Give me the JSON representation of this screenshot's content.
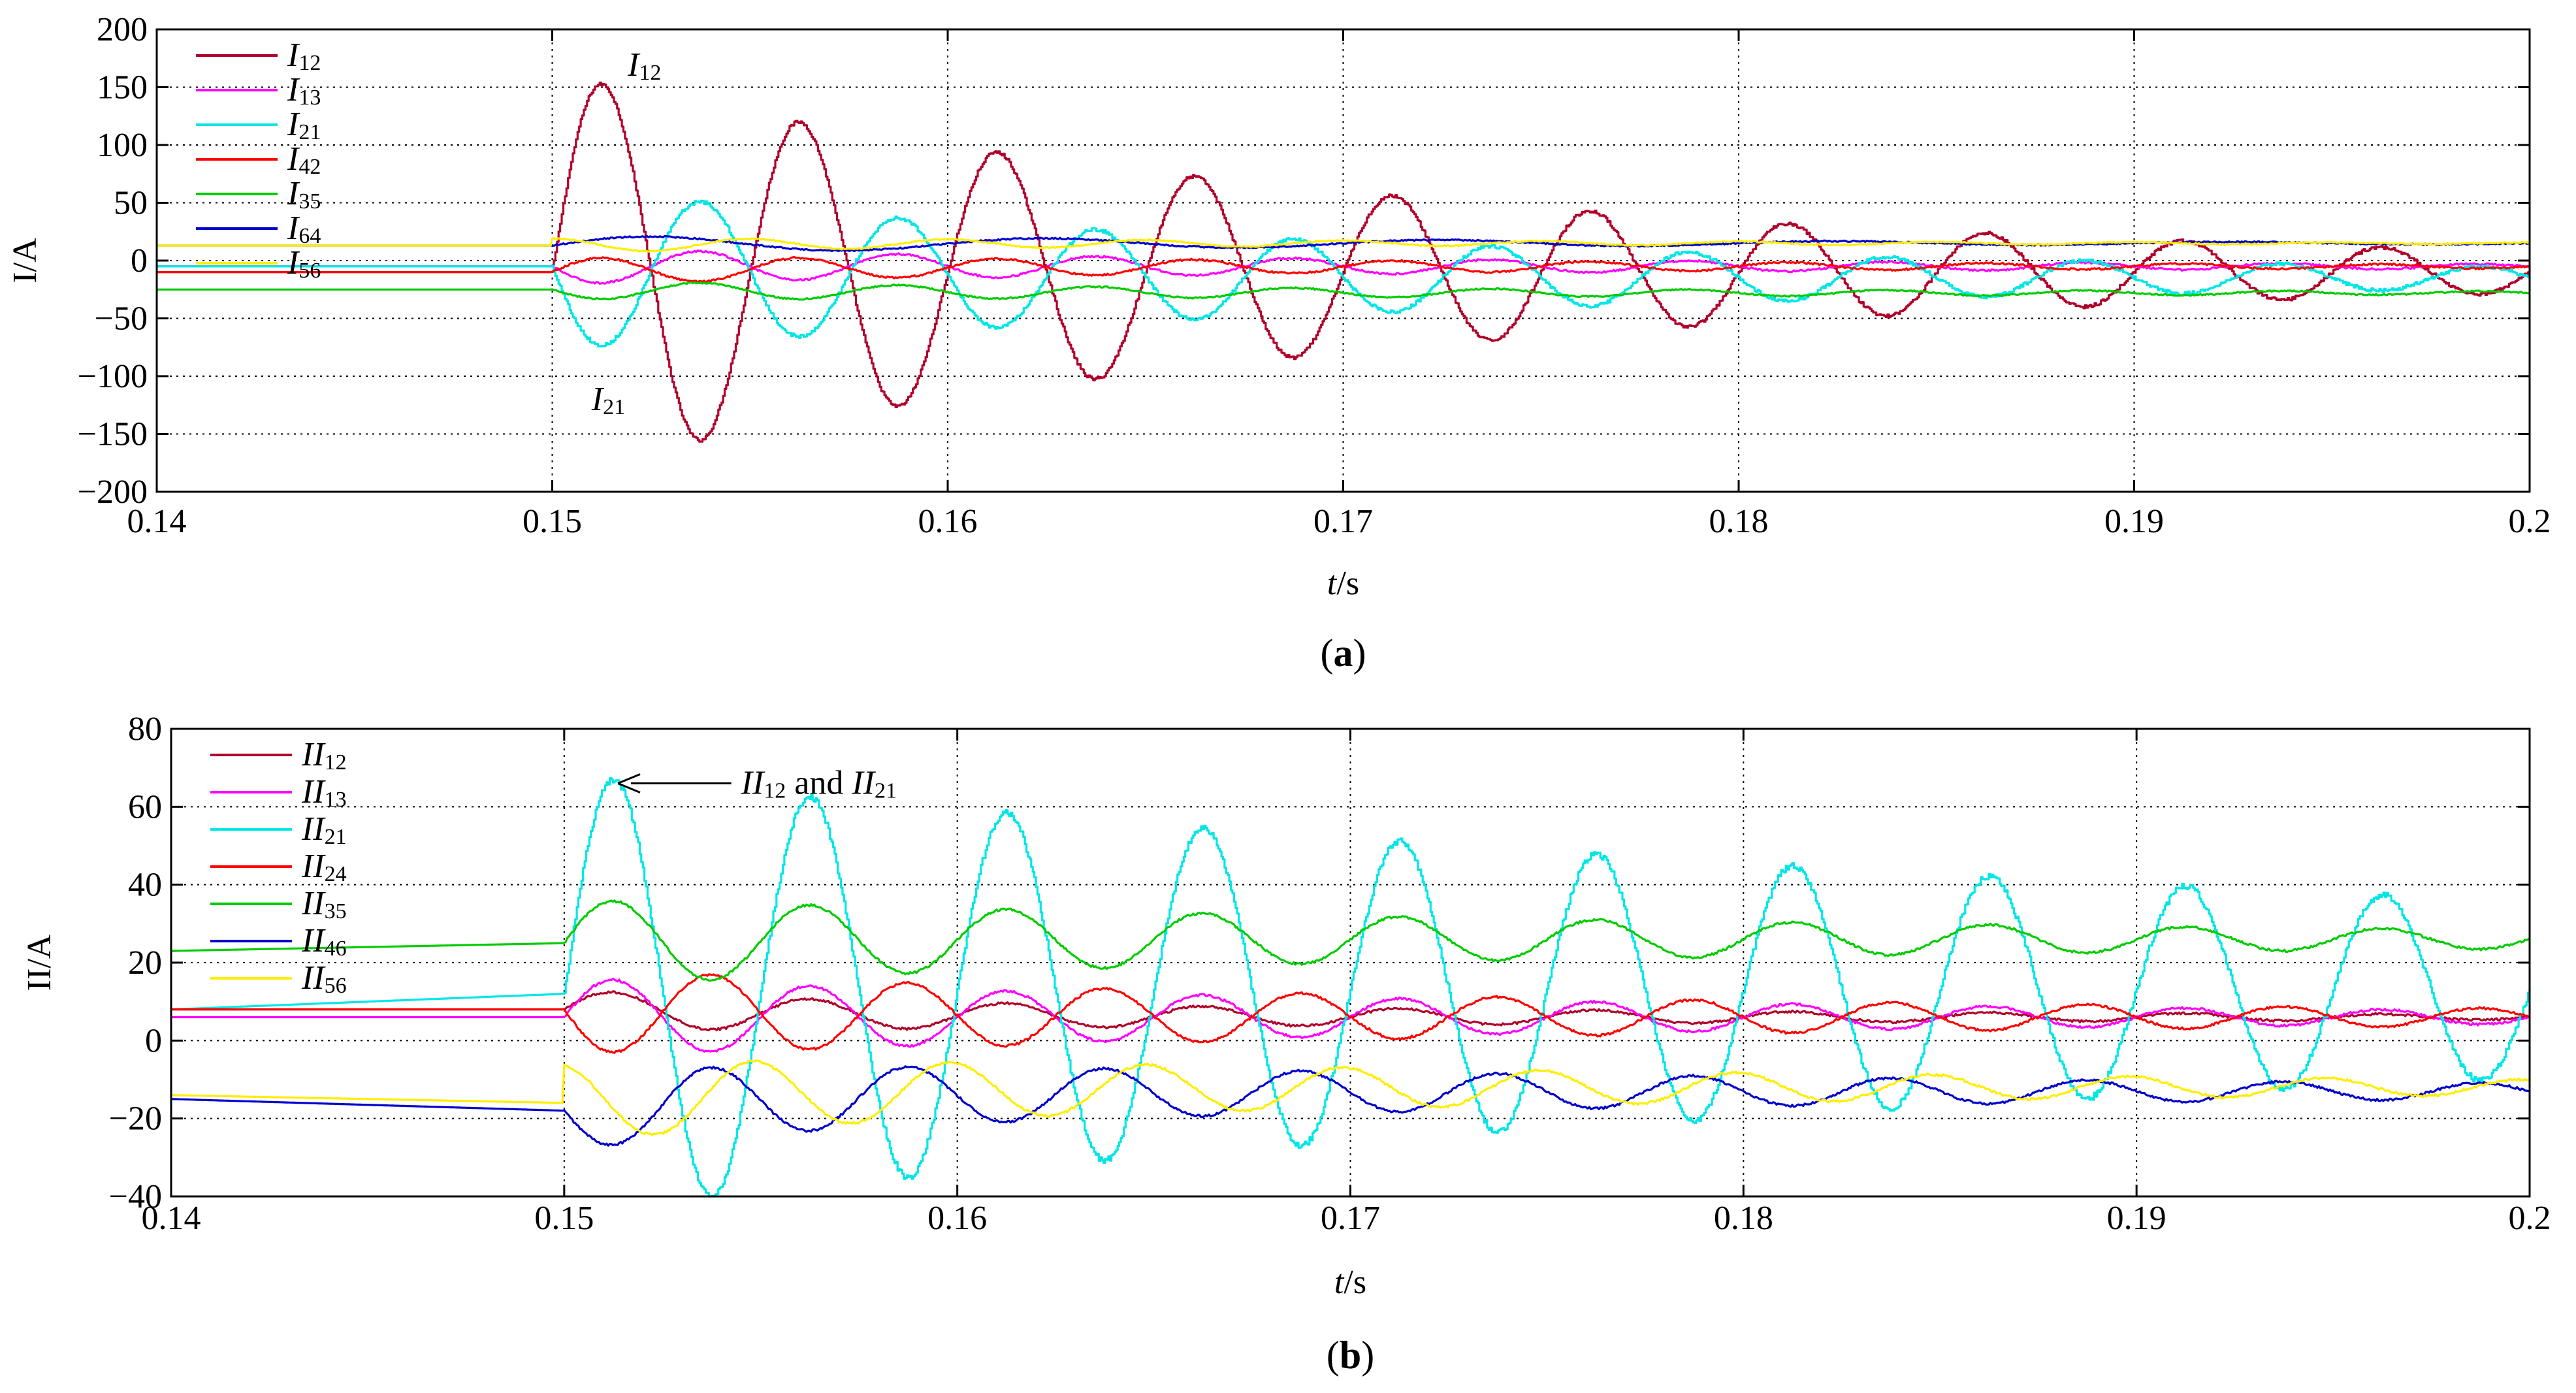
{
  "figure_caption": "",
  "chart_data": [
    {
      "panel_id": "a",
      "panel_caption": "(a)",
      "type": "line",
      "xlabel": "t/s",
      "xlabel_italic": "t",
      "xlabel_unit": "/s",
      "ylabel": "I/A",
      "xlim": [
        0.14,
        0.2
      ],
      "ylim": [
        -200,
        200
      ],
      "xticks": [
        0.14,
        0.15,
        0.16,
        0.17,
        0.18,
        0.19,
        0.2
      ],
      "xtick_labels": [
        "0.14",
        "0.15",
        "0.16",
        "0.17",
        "0.18",
        "0.19",
        "0.2"
      ],
      "yticks": [
        -200,
        -150,
        -100,
        -50,
        0,
        50,
        100,
        150,
        200
      ],
      "ytick_labels": [
        "−200",
        "−150",
        "−100",
        "−50",
        "0",
        "50",
        "100",
        "150",
        "200"
      ],
      "grid": true,
      "legend_position": "top-left",
      "disturbance_time": 0.15,
      "series": [
        {
          "name": "I12",
          "prefix": "I",
          "sub": "12",
          "color": "#b0002a",
          "pre": -10,
          "post": -10,
          "amp": 172,
          "decay": 45,
          "freq": 200,
          "ramp": 0,
          "noise": 1.5,
          "step": true,
          "phase": 0
        },
        {
          "name": "I13",
          "prefix": "I",
          "sub": "13",
          "color": "#ff00ff",
          "pre": -5,
          "post": -5,
          "amp": 15,
          "decay": 40,
          "freq": 200,
          "ramp": 0,
          "noise": 0.8,
          "step": false,
          "phase": 3.1416
        },
        {
          "name": "I21",
          "prefix": "I",
          "sub": "21",
          "color": "#00e6e6",
          "pre": -5,
          "post": -15,
          "amp": 70,
          "decay": 40,
          "freq": 200,
          "ramp": 0,
          "noise": 1.5,
          "step": true,
          "phase": 3.1416
        },
        {
          "name": "I42",
          "prefix": "I",
          "sub": "42",
          "color": "#ff0000",
          "pre": -10,
          "post": -5,
          "amp": 12,
          "decay": 40,
          "freq": 200,
          "ramp": 0,
          "noise": 0.8,
          "step": false,
          "phase": 0
        },
        {
          "name": "I35",
          "prefix": "I",
          "sub": "35",
          "color": "#00cc00",
          "pre": -25,
          "post": -28,
          "amp": 8,
          "decay": 35,
          "freq": 200,
          "ramp": 0,
          "noise": 0.6,
          "step": false,
          "phase": 3.1416
        },
        {
          "name": "I64",
          "prefix": "I",
          "sub": "64",
          "color": "#0000cc",
          "pre": 13,
          "post": 15,
          "amp": 8,
          "decay": 45,
          "freq": 100,
          "ramp": 0,
          "noise": 0.6,
          "step": false,
          "phase": 0
        },
        {
          "name": "I56",
          "prefix": "I",
          "sub": "56",
          "color": "#ffee00",
          "pre": 13,
          "post": 15,
          "amp": 6,
          "decay": 45,
          "freq": 200,
          "ramp": 0,
          "noise": 0.5,
          "step": false,
          "phase": 1.5708
        }
      ],
      "annotations": [
        {
          "id": "label-i12",
          "prefix": "I",
          "sub": "12",
          "x": 0.151,
          "y": 172,
          "text_x": 0.151,
          "text_y": 170,
          "arrow": false
        },
        {
          "id": "label-i21",
          "prefix": "I",
          "sub": "21",
          "x": 0.1505,
          "y": -118,
          "text_x": 0.1505,
          "text_y": -118,
          "arrow": false
        }
      ]
    },
    {
      "panel_id": "b",
      "panel_caption": "(b)",
      "type": "line",
      "xlabel": "t/s",
      "xlabel_italic": "t",
      "xlabel_unit": "/s",
      "ylabel": "II/A",
      "xlim": [
        0.14,
        0.2
      ],
      "ylim": [
        -40,
        80
      ],
      "xticks": [
        0.14,
        0.15,
        0.16,
        0.17,
        0.18,
        0.19,
        0.2
      ],
      "xtick_labels": [
        "0.14",
        "0.15",
        "0.16",
        "0.17",
        "0.18",
        "0.19",
        "0.2"
      ],
      "yticks": [
        -40,
        -20,
        0,
        20,
        40,
        60,
        80
      ],
      "ytick_labels": [
        "−40",
        "−20",
        "0",
        "20",
        "40",
        "60",
        "80"
      ],
      "grid": true,
      "legend_position": "top-left",
      "disturbance_time": 0.15,
      "series": [
        {
          "name": "II12",
          "prefix": "II",
          "sub": "12",
          "color": "#b0002a",
          "pre": 8,
          "post": 6,
          "amp": 5,
          "decay": 40,
          "freq": 200,
          "ramp": 0,
          "noise": 0.3,
          "step": false,
          "phase": 0
        },
        {
          "name": "II13",
          "prefix": "II",
          "sub": "13",
          "color": "#ff00ff",
          "pre": 6,
          "post": 6,
          "amp": 10,
          "decay": 35,
          "freq": 200,
          "ramp": 0,
          "noise": 0.3,
          "step": false,
          "phase": 0
        },
        {
          "name": "II21",
          "prefix": "II",
          "sub": "21",
          "color": "#00e6e6",
          "pre": 8,
          "post": 13,
          "amp": 56,
          "decay": 18,
          "freq": 200,
          "ramp": 4,
          "noise": 0.8,
          "step": true,
          "phase": 0
        },
        {
          "name": "II24",
          "prefix": "II",
          "sub": "24",
          "color": "#ff0000",
          "pre": 8,
          "post": 6,
          "amp": 11,
          "decay": 32,
          "freq": 200,
          "ramp": 0,
          "noise": 0.3,
          "step": false,
          "phase": 3.1416
        },
        {
          "name": "II35",
          "prefix": "II",
          "sub": "35",
          "color": "#00cc00",
          "pre": 23,
          "post": 26,
          "amp": 11,
          "decay": 30,
          "freq": 200,
          "ramp": 2,
          "noise": 0.3,
          "step": false,
          "phase": 0
        },
        {
          "name": "II46",
          "prefix": "II",
          "sub": "46",
          "color": "#0000cc",
          "pre": -15,
          "post": -13,
          "amp": 10,
          "decay": 32,
          "freq": 200,
          "ramp": -3,
          "noise": 0.3,
          "step": false,
          "phase": 3.1416
        },
        {
          "name": "II56",
          "prefix": "II",
          "sub": "56",
          "color": "#ffee00",
          "pre": -14,
          "post": -12,
          "amp": 10,
          "decay": 32,
          "freq": 200,
          "ramp": -2,
          "noise": 0.3,
          "step": false,
          "phase": 1.8
        }
      ],
      "annotations": [
        {
          "id": "label-ii12-ii21",
          "prefix": "II",
          "sub": "12",
          "mid": " and ",
          "prefix2": "II",
          "sub2": "21",
          "x": 0.1512,
          "y": 66,
          "text_x": 0.1545,
          "text_y": 66,
          "arrow": true
        }
      ]
    }
  ]
}
